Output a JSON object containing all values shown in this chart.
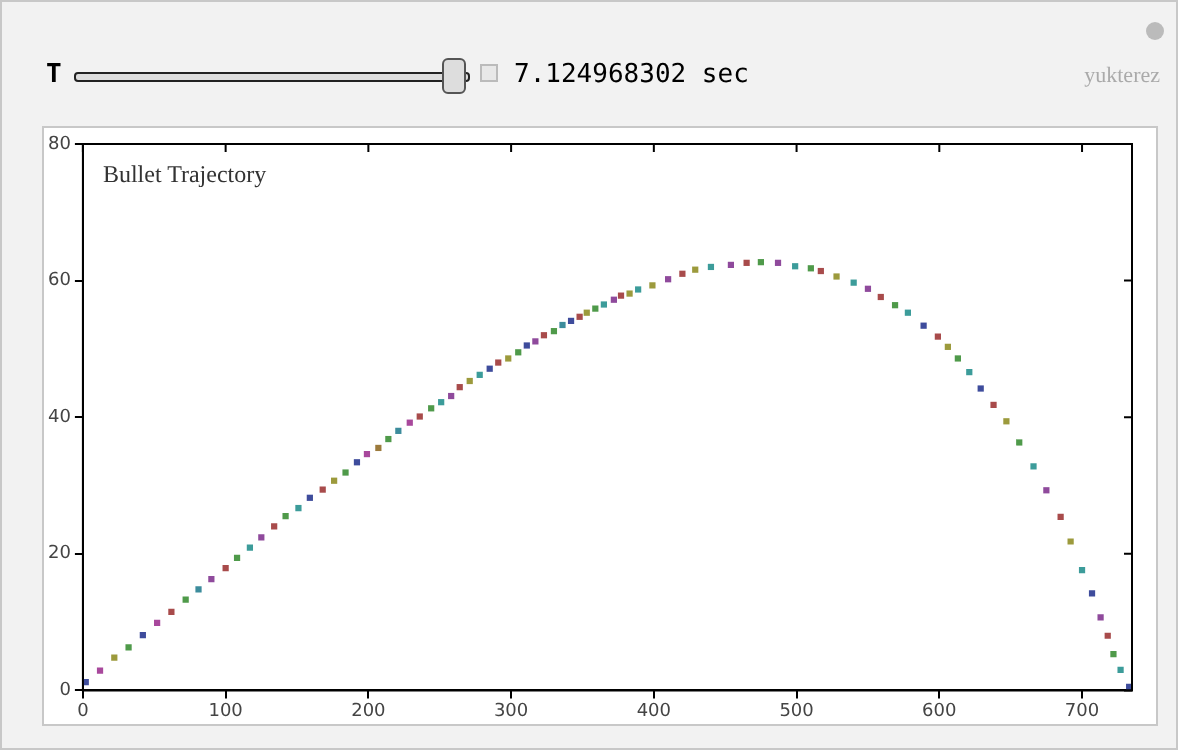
{
  "chart_data": {
    "type": "scatter",
    "title": "Bullet Trajectory",
    "annotations": [
      "T",
      "7.124968302 sec",
      "yukterez"
    ],
    "xlim": [
      0,
      735
    ],
    "xticks": [
      0,
      100,
      200,
      300,
      400,
      500,
      600,
      700
    ],
    "ylim": [
      0,
      80
    ],
    "yticks": [
      0,
      20,
      40,
      60,
      80
    ],
    "grid": false,
    "legend": false,
    "marker": "square",
    "series": [
      {
        "x": [
          2,
          12,
          22,
          32,
          42,
          52,
          62,
          72,
          81,
          90,
          100,
          108,
          117,
          125,
          134,
          142,
          151,
          159,
          168,
          176,
          184,
          192,
          199,
          207,
          214,
          221,
          229,
          236,
          244,
          251,
          258,
          264,
          271,
          278,
          285,
          291,
          298,
          305,
          311,
          317,
          323,
          330,
          336,
          342,
          348,
          353,
          359,
          365,
          372,
          377,
          383,
          389,
          399,
          410,
          420,
          429,
          440,
          454,
          465,
          475,
          487,
          499,
          510,
          517,
          528,
          540,
          550,
          559,
          569,
          578,
          589,
          599,
          606,
          613,
          621,
          629,
          638,
          647,
          656,
          666,
          675,
          685,
          692,
          700,
          707,
          713,
          718,
          722,
          727,
          733
        ],
        "values": [
          1.2,
          2.9,
          4.8,
          6.3,
          8.1,
          9.9,
          11.5,
          13.3,
          14.8,
          16.3,
          17.9,
          19.4,
          20.9,
          22.4,
          24,
          25.5,
          26.7,
          28.2,
          29.4,
          30.7,
          31.9,
          33.4,
          34.6,
          35.5,
          36.8,
          38,
          39.2,
          40.1,
          41.3,
          42.2,
          43.1,
          44.4,
          45.3,
          46.2,
          47.1,
          48,
          48.6,
          49.5,
          50.5,
          51.1,
          52,
          52.6,
          53.5,
          54.1,
          54.7,
          55.3,
          55.9,
          56.5,
          57.2,
          57.8,
          58.1,
          58.7,
          59.3,
          60.2,
          61,
          61.6,
          62,
          62.3,
          62.6,
          62.7,
          62.6,
          62.1,
          61.8,
          61.4,
          60.6,
          59.7,
          58.8,
          57.6,
          56.4,
          55.3,
          53.4,
          51.8,
          50.3,
          48.6,
          46.6,
          44.2,
          41.8,
          39.4,
          36.3,
          32.8,
          29.3,
          25.4,
          21.8,
          17.6,
          14.2,
          10.7,
          8,
          5.3,
          3,
          0.5
        ],
        "colors": [
          "#3e4c9c",
          "#a8489c",
          "#9c9a3c",
          "#4f9a4a",
          "#3e4c9c",
          "#a8489c",
          "#a84b4b",
          "#4f9a4a",
          "#3c8c9c",
          "#8f4a9c",
          "#a84b4b",
          "#4f9a4a",
          "#3c9c9a",
          "#8f4a9c",
          "#a84b4b",
          "#4f9a4a",
          "#3c9c9a",
          "#3e4c9c",
          "#a84b4b",
          "#9c9a3c",
          "#4f9a4a",
          "#3e4c9c",
          "#a8489c",
          "#9c7a3c",
          "#4f9a4a",
          "#3c8c9c",
          "#a8489c",
          "#a84b4b",
          "#4f9a4a",
          "#3c9c9a",
          "#8f4a9c",
          "#a84b4b",
          "#9c9a3c",
          "#3c9c9a",
          "#3e4c9c",
          "#a84b4b",
          "#9c9a3c",
          "#4f9a4a",
          "#3e4c9c",
          "#8f4a9c",
          "#a84b4b",
          "#4f9a4a",
          "#3c8c9c",
          "#3e4c9c",
          "#a84b4b",
          "#9c9a3c",
          "#4f9a4a",
          "#3c9c9a",
          "#8f4a9c",
          "#a84b4b",
          "#9c9a3c",
          "#3c9c9a",
          "#9c9a3c",
          "#8f4a9c",
          "#a84b4b",
          "#9c9a3c",
          "#3c9c9a",
          "#8f4a9c",
          "#a84b4b",
          "#4f9a4a",
          "#8f4a9c",
          "#3c9c9a",
          "#4f9a4a",
          "#a84b4b",
          "#9c9a3c",
          "#3c9c9a",
          "#8f4a9c",
          "#a84b4b",
          "#4f9a4a",
          "#3c9c9a",
          "#3e4c9c",
          "#a84b4b",
          "#9c9a3c",
          "#4f9a4a",
          "#3c9c9a",
          "#3e4c9c",
          "#a84b4b",
          "#9c9a3c",
          "#4f9a4a",
          "#3c9c9a",
          "#8f4a9c",
          "#a84b4b",
          "#9c9a3c",
          "#3c9c9a",
          "#3e4c9c",
          "#8f4a9c",
          "#a84b4b",
          "#4f9a4a",
          "#3c9c9a",
          "#3e4c9c"
        ]
      }
    ]
  }
}
